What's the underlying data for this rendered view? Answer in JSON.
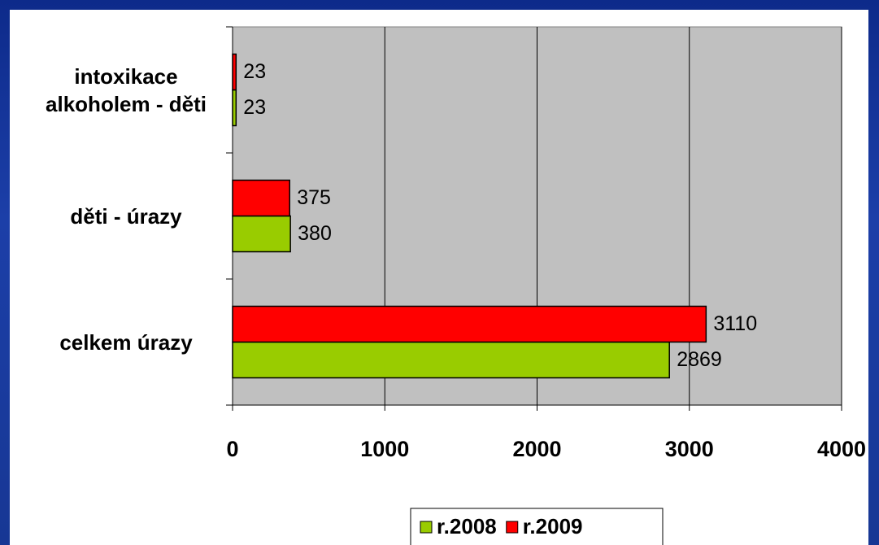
{
  "chart_data": {
    "type": "bar",
    "categories": [
      "intoxikace alkoholem - děti",
      "děti - úrazy",
      "celkem úrazy"
    ],
    "series": [
      {
        "name": "r.2008",
        "color": "#99cc00",
        "values": [
          23,
          380,
          2869
        ]
      },
      {
        "name": "r.2009",
        "color": "#ff0000",
        "values": [
          23,
          375,
          3110
        ]
      }
    ],
    "xlim": [
      0,
      4000
    ],
    "xticks": [
      0,
      1000,
      2000,
      3000,
      4000
    ],
    "grid": true,
    "legend": "bottom"
  }
}
